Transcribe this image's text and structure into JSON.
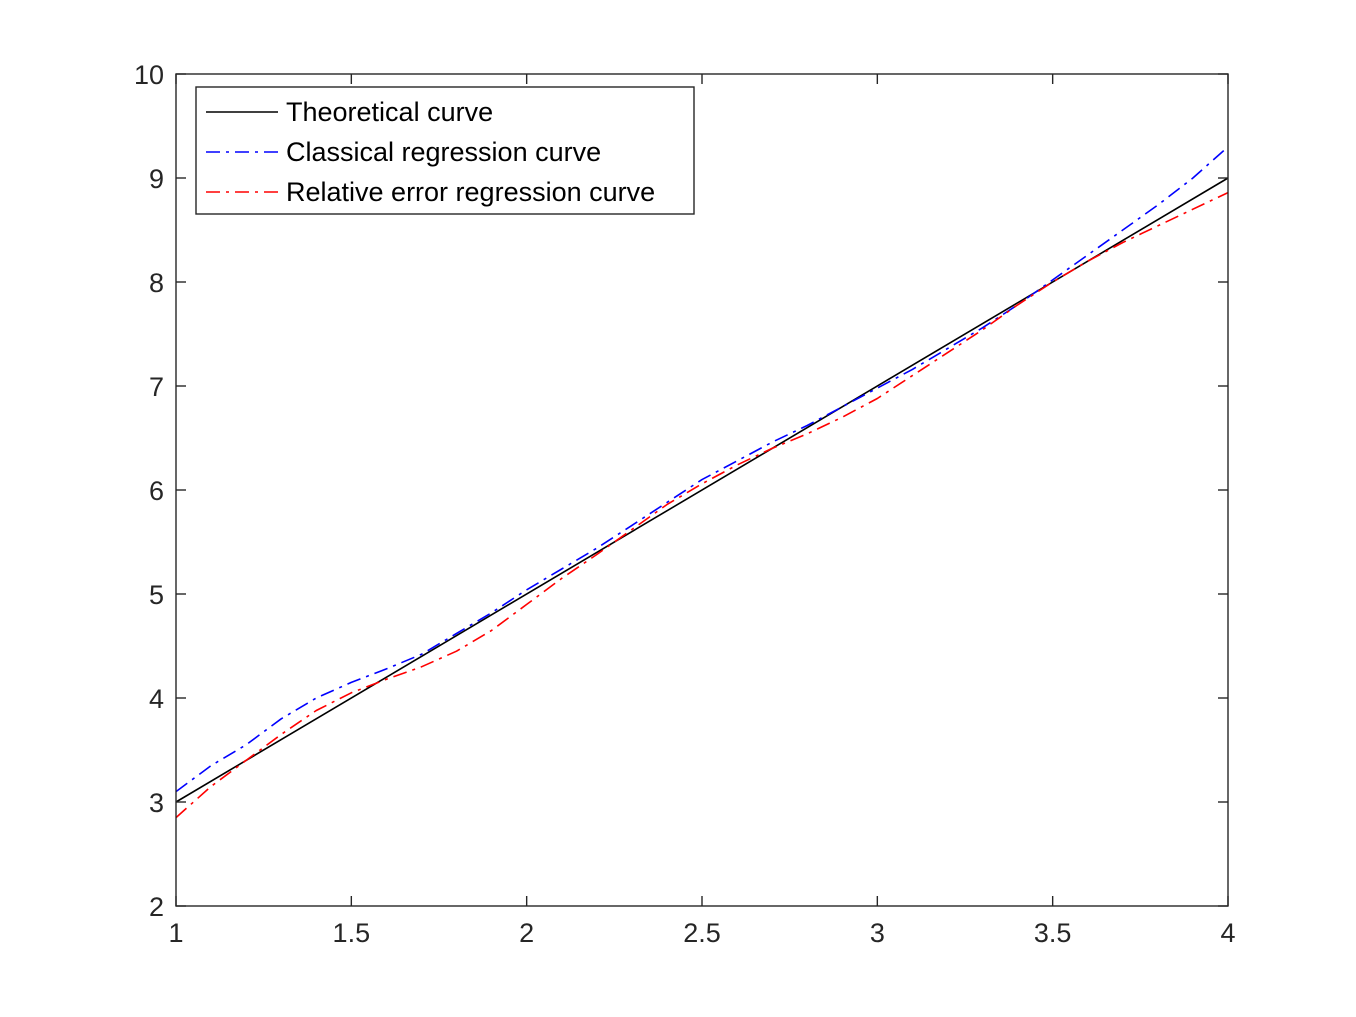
{
  "chart_data": {
    "type": "line",
    "title": "",
    "xlabel": "",
    "ylabel": "",
    "xlim": [
      1,
      4
    ],
    "ylim": [
      2,
      10
    ],
    "xticks": [
      "1",
      "1.5",
      "2",
      "2.5",
      "3",
      "3.5",
      "4"
    ],
    "yticks": [
      "2",
      "3",
      "4",
      "5",
      "6",
      "7",
      "8",
      "9",
      "10"
    ],
    "grid": false,
    "legend_position": "top-left",
    "series": [
      {
        "name": "Theoretical curve",
        "color": "#000000",
        "style": "solid",
        "x": [
          1,
          4
        ],
        "y": [
          3,
          9
        ]
      },
      {
        "name": "Classical regression curve",
        "color": "#0000ff",
        "style": "dash-dot",
        "x": [
          1.0,
          1.1,
          1.2,
          1.3,
          1.4,
          1.5,
          1.6,
          1.7,
          1.8,
          1.9,
          2.0,
          2.1,
          2.2,
          2.3,
          2.4,
          2.5,
          2.6,
          2.7,
          2.8,
          2.9,
          3.0,
          3.1,
          3.2,
          3.3,
          3.4,
          3.5,
          3.6,
          3.7,
          3.8,
          3.9,
          4.0
        ],
        "y": [
          3.1,
          3.35,
          3.55,
          3.8,
          4.0,
          4.15,
          4.28,
          4.42,
          4.62,
          4.82,
          5.04,
          5.24,
          5.44,
          5.66,
          5.88,
          6.1,
          6.28,
          6.46,
          6.62,
          6.8,
          6.98,
          7.16,
          7.36,
          7.56,
          7.78,
          8.02,
          8.26,
          8.5,
          8.74,
          9.0,
          9.3
        ]
      },
      {
        "name": "Relative error regression curve",
        "color": "#ff0000",
        "style": "dash-dot",
        "x": [
          1.0,
          1.05,
          1.1,
          1.2,
          1.3,
          1.4,
          1.5,
          1.6,
          1.7,
          1.8,
          1.9,
          2.0,
          2.1,
          2.2,
          2.3,
          2.4,
          2.5,
          2.6,
          2.7,
          2.8,
          2.9,
          3.0,
          3.1,
          3.2,
          3.3,
          3.4,
          3.5,
          3.6,
          3.7,
          3.8,
          3.9,
          4.0
        ],
        "y": [
          2.85,
          3.0,
          3.15,
          3.4,
          3.65,
          3.88,
          4.05,
          4.18,
          4.3,
          4.45,
          4.65,
          4.9,
          5.15,
          5.38,
          5.62,
          5.86,
          6.06,
          6.24,
          6.4,
          6.54,
          6.7,
          6.88,
          7.1,
          7.32,
          7.54,
          7.78,
          8.0,
          8.2,
          8.38,
          8.54,
          8.7,
          8.86
        ]
      }
    ]
  }
}
